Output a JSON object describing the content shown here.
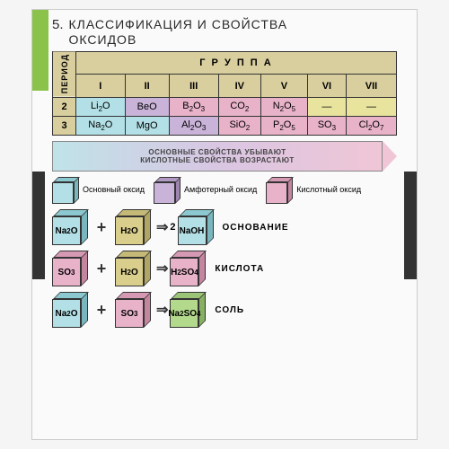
{
  "title": {
    "num": "5.",
    "line1": "КЛАССИФИКАЦИЯ И СВОЙСТВА",
    "line2": "ОКСИДОВ"
  },
  "table": {
    "period_label": "ПЕРИОД",
    "group_label": "Г Р У П П А",
    "groups": [
      "I",
      "II",
      "III",
      "IV",
      "V",
      "VI",
      "VII"
    ],
    "periods": [
      "2",
      "3"
    ],
    "row2": [
      "Li₂O",
      "BeO",
      "B₂O₃",
      "CO₂",
      "N₂O₅",
      "—",
      "—"
    ],
    "row3": [
      "Na₂O",
      "MgO",
      "Al₂O₃",
      "SiO₂",
      "P₂O₅",
      "SO₃",
      "Cl₂O₇"
    ],
    "cell_colors_row2": [
      "c-basic",
      "c-amph",
      "c-acid",
      "c-acid",
      "c-acid",
      "c-dash",
      "c-dash"
    ],
    "cell_colors_row3": [
      "c-basic",
      "c-basic",
      "c-amph",
      "c-acid",
      "c-acid",
      "c-acid",
      "c-acid"
    ]
  },
  "arrow": {
    "line1": "ОСНОВНЫЕ СВОЙСТВА УБЫВАЮТ",
    "line2": "КИСЛОТНЫЕ СВОЙСТВА ВОЗРАСТАЮТ"
  },
  "legend": {
    "basic": "Основный оксид",
    "amph": "Амфотерный оксид",
    "acid": "Кислотный оксид"
  },
  "colors": {
    "basic": "#b3e0e6",
    "amph": "#c9b3d9",
    "acid": "#e8b3c9",
    "water": "#d9ce8c",
    "salt": "#b3d98c"
  },
  "reactions": [
    {
      "r1": {
        "f": "Na₂O",
        "t": "basic"
      },
      "r2": {
        "f": "H₂O",
        "t": "water"
      },
      "coef": "2",
      "p": {
        "f": "NaOH",
        "t": "basic"
      },
      "label": "ОСНОВАНИЕ"
    },
    {
      "r1": {
        "f": "SO₃",
        "t": "acid"
      },
      "r2": {
        "f": "H₂O",
        "t": "water"
      },
      "coef": "",
      "p": {
        "f": "H₂SO₄",
        "t": "acid"
      },
      "label": "КИСЛОТА"
    },
    {
      "r1": {
        "f": "Na₂O",
        "t": "basic"
      },
      "r2": {
        "f": "SO₃",
        "t": "acid"
      },
      "coef": "",
      "p": {
        "f": "Na₂SO₄",
        "t": "salt"
      },
      "label": "СОЛЬ"
    }
  ]
}
